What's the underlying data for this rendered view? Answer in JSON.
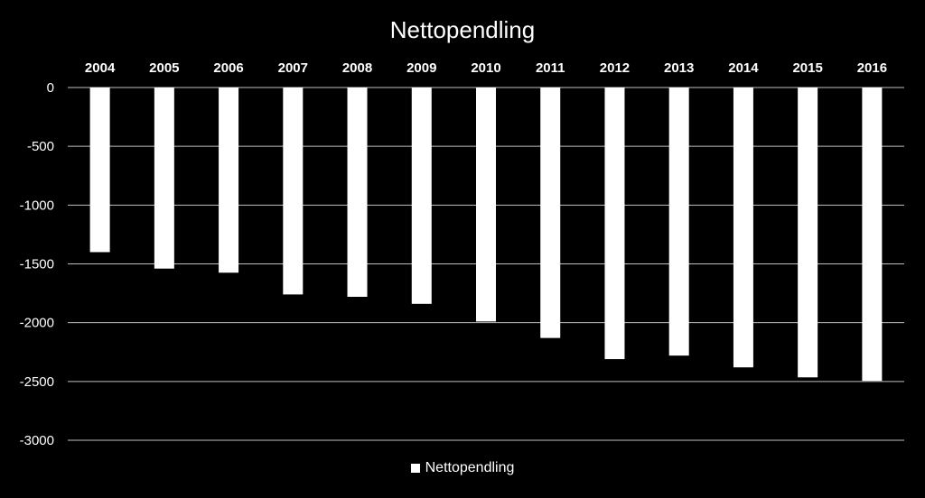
{
  "chart_data": {
    "type": "bar",
    "title": "Nettopendling",
    "categories": [
      "2004",
      "2005",
      "2006",
      "2007",
      "2008",
      "2009",
      "2010",
      "2011",
      "2012",
      "2013",
      "2014",
      "2015",
      "2016"
    ],
    "series": [
      {
        "name": "Nettopendling",
        "values": [
          -1400,
          -1540,
          -1575,
          -1760,
          -1780,
          -1840,
          -1990,
          -2130,
          -2310,
          -2280,
          -2380,
          -2465,
          -2495
        ]
      }
    ],
    "ylim": [
      -3000,
      0
    ],
    "yticks": [
      0,
      -500,
      -1000,
      -1500,
      -2000,
      -2500,
      -3000
    ],
    "xaxis_position": "top",
    "grid": true,
    "legend_position": "bottom",
    "colors": {
      "background": "#000000",
      "bar": "#ffffff",
      "grid": "#bfbfbf",
      "text": "#ffffff"
    }
  }
}
